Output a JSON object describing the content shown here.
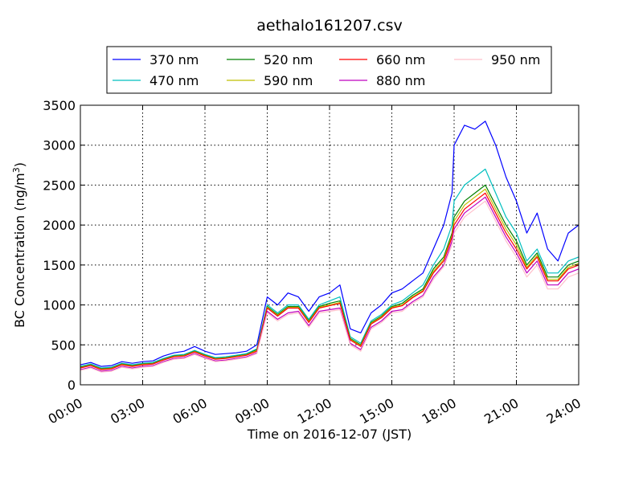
{
  "chart_data": {
    "type": "line",
    "title": "aethalo161207.csv",
    "xlabel": "Time on 2016-12-07 (JST)",
    "ylabel_main": "BC Concentration (ng/m",
    "ylabel_sup": "3",
    "ylabel_end": ")",
    "x_unit": "hours since 00:00 on 2016-12-07",
    "xlim": [
      0,
      24
    ],
    "ylim": [
      0,
      3500
    ],
    "grid": true,
    "legend_location": "top-center",
    "x_ticks": [
      {
        "v": 0,
        "label": "00:00"
      },
      {
        "v": 3,
        "label": "03:00"
      },
      {
        "v": 6,
        "label": "06:00"
      },
      {
        "v": 9,
        "label": "09:00"
      },
      {
        "v": 12,
        "label": "12:00"
      },
      {
        "v": 15,
        "label": "15:00"
      },
      {
        "v": 18,
        "label": "18:00"
      },
      {
        "v": 21,
        "label": "21:00"
      },
      {
        "v": 24,
        "label": "24:00"
      }
    ],
    "y_ticks": [
      {
        "v": 0,
        "label": "0"
      },
      {
        "v": 500,
        "label": "500"
      },
      {
        "v": 1000,
        "label": "1000"
      },
      {
        "v": 1500,
        "label": "1500"
      },
      {
        "v": 2000,
        "label": "2000"
      },
      {
        "v": 2500,
        "label": "2500"
      },
      {
        "v": 3000,
        "label": "3000"
      },
      {
        "v": 3500,
        "label": "3500"
      }
    ],
    "x": [
      0,
      0.5,
      1,
      1.5,
      2,
      2.5,
      3,
      3.5,
      4,
      4.5,
      5,
      5.5,
      6,
      6.5,
      7,
      7.5,
      8,
      8.5,
      9,
      9.5,
      10,
      10.5,
      11,
      11.5,
      12,
      12.5,
      13,
      13.5,
      14,
      14.5,
      15,
      15.5,
      16,
      16.5,
      17,
      17.5,
      17.9,
      18,
      18.5,
      19,
      19.5,
      20,
      20.5,
      21,
      21.5,
      22,
      22.5,
      23,
      23.5,
      24
    ],
    "series": [
      {
        "name": "370 nm",
        "color": "#0000ff",
        "values": [
          250,
          280,
          230,
          240,
          290,
          270,
          290,
          300,
          360,
          400,
          420,
          480,
          420,
          380,
          390,
          400,
          420,
          500,
          1100,
          1000,
          1150,
          1100,
          920,
          1100,
          1150,
          1250,
          700,
          650,
          900,
          1000,
          1150,
          1200,
          1300,
          1400,
          1700,
          2000,
          2400,
          3000,
          3250,
          3200,
          3300,
          3000,
          2600,
          2300,
          1900,
          2150,
          1700,
          1550,
          1900,
          2000
        ]
      },
      {
        "name": "470 nm",
        "color": "#00bfbf",
        "values": [
          230,
          260,
          210,
          220,
          270,
          250,
          270,
          280,
          330,
          370,
          380,
          430,
          380,
          340,
          350,
          370,
          390,
          450,
          1000,
          900,
          1000,
          1000,
          820,
          1000,
          1050,
          1100,
          600,
          520,
          800,
          880,
          1000,
          1050,
          1150,
          1250,
          1500,
          1700,
          2000,
          2300,
          2500,
          2600,
          2700,
          2400,
          2100,
          1900,
          1550,
          1700,
          1400,
          1400,
          1550,
          1600
        ]
      },
      {
        "name": "520 nm",
        "color": "#008000",
        "values": [
          220,
          250,
          200,
          210,
          260,
          240,
          260,
          270,
          320,
          360,
          370,
          420,
          370,
          330,
          340,
          360,
          380,
          440,
          980,
          880,
          980,
          980,
          800,
          980,
          1020,
          1050,
          580,
          500,
          780,
          860,
          980,
          1020,
          1120,
          1200,
          1450,
          1600,
          1900,
          2100,
          2300,
          2400,
          2500,
          2250,
          2000,
          1800,
          1500,
          1650,
          1350,
          1350,
          1500,
          1550
        ]
      },
      {
        "name": "590 nm",
        "color": "#bfbf00",
        "values": [
          215,
          245,
          195,
          205,
          255,
          235,
          255,
          265,
          315,
          355,
          365,
          415,
          365,
          325,
          335,
          355,
          375,
          430,
          970,
          870,
          970,
          970,
          790,
          970,
          1000,
          1030,
          570,
          490,
          770,
          850,
          970,
          1000,
          1100,
          1180,
          1420,
          1570,
          1870,
          2050,
          2250,
          2350,
          2450,
          2200,
          1950,
          1750,
          1470,
          1620,
          1320,
          1320,
          1470,
          1520
        ]
      },
      {
        "name": "660 nm",
        "color": "#ff0000",
        "values": [
          210,
          240,
          190,
          200,
          250,
          230,
          250,
          260,
          310,
          350,
          360,
          410,
          360,
          320,
          330,
          350,
          370,
          420,
          960,
          860,
          960,
          960,
          780,
          960,
          990,
          1020,
          560,
          480,
          760,
          840,
          960,
          990,
          1090,
          1170,
          1400,
          1550,
          1850,
          2000,
          2200,
          2300,
          2400,
          2150,
          1900,
          1700,
          1450,
          1600,
          1300,
          1300,
          1450,
          1500
        ]
      },
      {
        "name": "880 nm",
        "color": "#bf00bf",
        "values": [
          190,
          220,
          170,
          180,
          230,
          210,
          230,
          240,
          290,
          330,
          340,
          390,
          340,
          300,
          310,
          330,
          350,
          400,
          920,
          820,
          900,
          920,
          740,
          920,
          940,
          960,
          520,
          440,
          720,
          800,
          920,
          940,
          1040,
          1120,
          1350,
          1500,
          1800,
          1950,
          2150,
          2250,
          2350,
          2100,
          1850,
          1650,
          1400,
          1550,
          1250,
          1250,
          1400,
          1450
        ]
      },
      {
        "name": "950 nm",
        "color": "#ffc0cb",
        "values": [
          180,
          210,
          160,
          170,
          220,
          200,
          220,
          230,
          280,
          320,
          330,
          380,
          330,
          290,
          300,
          320,
          340,
          390,
          900,
          800,
          880,
          900,
          720,
          900,
          920,
          940,
          500,
          420,
          700,
          780,
          900,
          920,
          1020,
          1100,
          1320,
          1480,
          1750,
          1900,
          2100,
          2200,
          2300,
          2050,
          1800,
          1600,
          1350,
          1500,
          1200,
          1200,
          1350,
          1400
        ]
      }
    ]
  }
}
